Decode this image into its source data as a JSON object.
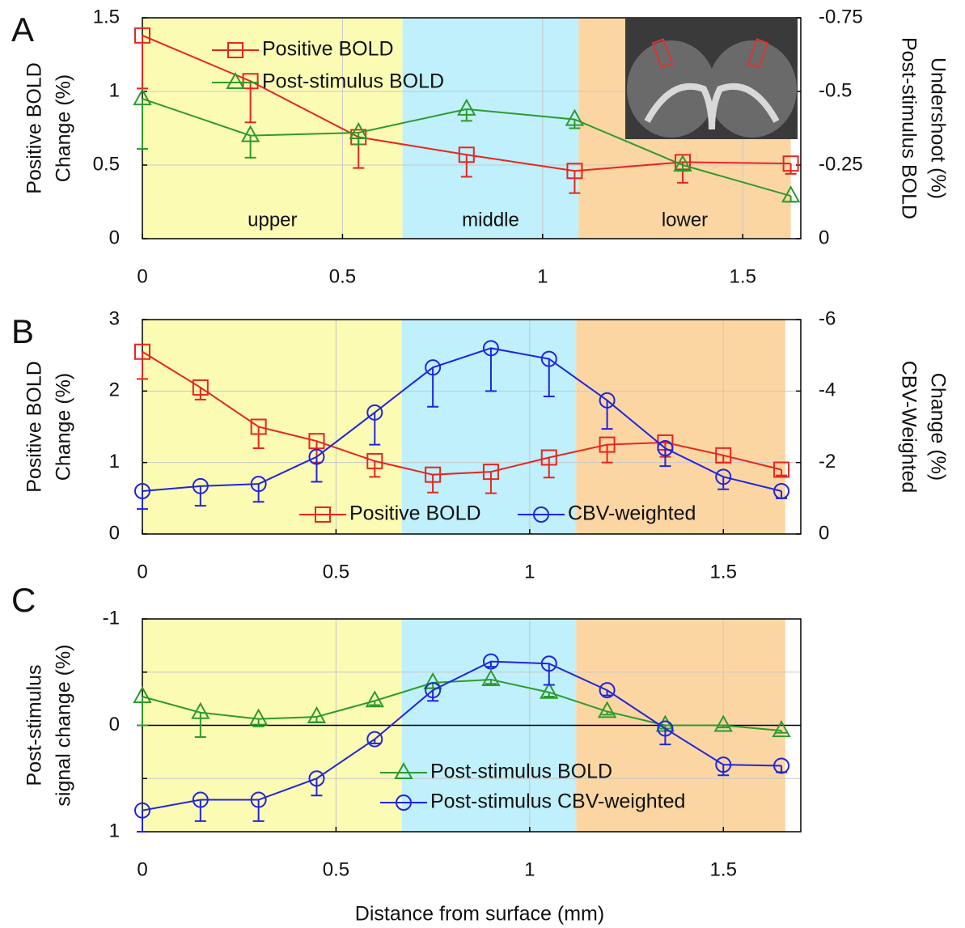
{
  "chart_data": [
    {
      "type": "line",
      "panel": "A",
      "ylabel": [
        "Positive BOLD",
        "Change (%)"
      ],
      "y2label": [
        "Post-stimulus BOLD",
        "Undershoot (%)"
      ],
      "xlim": [
        0,
        1.645
      ],
      "xticks": [
        0,
        0.5,
        1,
        1.5
      ],
      "ylim": [
        0,
        1.5
      ],
      "yticks": [
        0,
        0.5,
        1,
        1.5
      ],
      "y2lim": [
        0,
        -0.75
      ],
      "y2ticks": [
        0,
        -0.25,
        -0.5,
        -0.75
      ],
      "grid": true,
      "legend": "upper left",
      "regions": [
        {
          "label": "upper",
          "range": [
            0,
            0.65
          ],
          "color": "#fcfbb4"
        },
        {
          "label": "middle",
          "range": [
            0.65,
            1.09
          ],
          "color": "#bff0fb"
        },
        {
          "label": "lower",
          "range": [
            1.09,
            1.62
          ],
          "color": "#fcd6a2"
        }
      ],
      "x": [
        0,
        0.27,
        0.54,
        0.81,
        1.08,
        1.35,
        1.62
      ],
      "series": [
        {
          "name": "Positive BOLD",
          "color": "#e8251f",
          "marker": "square",
          "values": [
            1.38,
            1.07,
            0.69,
            0.57,
            0.46,
            0.52,
            0.51
          ],
          "errors": [
            0.36,
            0.28,
            0.21,
            0.15,
            0.15,
            0.14,
            0.07
          ]
        },
        {
          "name": "Post-stimulus BOLD",
          "color": "#2e9a2e",
          "marker": "triangle",
          "axis": "y2",
          "values": [
            -0.475,
            -0.35,
            -0.36,
            -0.44,
            -0.405,
            -0.25,
            -0.145
          ],
          "errors": [
            0.17,
            0.075,
            0.04,
            0.04,
            0.03,
            0.02,
            0.02
          ]
        }
      ]
    },
    {
      "type": "line",
      "panel": "B",
      "ylabel": [
        "Positive  BOLD",
        "Change (%)"
      ],
      "y2label": [
        "CBV-Weighted",
        "Change  (%)"
      ],
      "xlim": [
        0,
        1.7
      ],
      "xticks": [
        0,
        0.5,
        1,
        1.5
      ],
      "ylim": [
        0,
        3
      ],
      "yticks": [
        0,
        1,
        2,
        3
      ],
      "y2lim": [
        0,
        -6
      ],
      "y2ticks": [
        0,
        -2,
        -4,
        -6
      ],
      "grid": true,
      "legend": "lower center",
      "regions": [
        {
          "range": [
            0,
            0.67
          ],
          "color": "#fcfbb4"
        },
        {
          "range": [
            0.67,
            1.12
          ],
          "color": "#bff0fb"
        },
        {
          "range": [
            1.12,
            1.66
          ],
          "color": "#fcd6a2"
        }
      ],
      "x": [
        0,
        0.15,
        0.3,
        0.45,
        0.6,
        0.75,
        0.9,
        1.05,
        1.2,
        1.35,
        1.5,
        1.65
      ],
      "series": [
        {
          "name": "Positive BOLD",
          "color": "#e8251f",
          "marker": "square",
          "values": [
            2.55,
            2.05,
            1.5,
            1.3,
            1.02,
            0.83,
            0.87,
            1.07,
            1.25,
            1.28,
            1.1,
            0.9
          ],
          "errors": [
            0.38,
            0.17,
            0.3,
            0.3,
            0.22,
            0.25,
            0.3,
            0.28,
            0.25,
            0.2,
            0.1,
            0.08
          ]
        },
        {
          "name": "CBV-weighted",
          "color": "#1f25e0",
          "marker": "circle",
          "axis": "y2",
          "values": [
            -1.2,
            -1.34,
            -1.4,
            -2.16,
            -3.4,
            -4.66,
            -5.2,
            -4.9,
            -3.74,
            -2.4,
            -1.6,
            -1.2
          ],
          "errors": [
            0.5,
            0.55,
            0.5,
            0.7,
            0.9,
            1.1,
            1.2,
            1.05,
            0.8,
            0.5,
            0.35,
            0.2
          ]
        }
      ]
    },
    {
      "type": "line",
      "panel": "C",
      "ylabel": [
        "Post-stimulus",
        "signal change (%)"
      ],
      "xlabel": "Distance from surface (mm)",
      "xlim": [
        0,
        1.7
      ],
      "xticks": [
        0,
        0.5,
        1,
        1.5
      ],
      "ylim": [
        1,
        -1
      ],
      "yticks": [
        -1,
        0,
        1
      ],
      "yminor": [
        -0.5,
        0.5
      ],
      "grid": true,
      "zero_line": true,
      "legend": "lower right",
      "regions": [
        {
          "range": [
            0,
            0.67
          ],
          "color": "#fcfbb4"
        },
        {
          "range": [
            0.67,
            1.12
          ],
          "color": "#bff0fb"
        },
        {
          "range": [
            1.12,
            1.66
          ],
          "color": "#fcd6a2"
        }
      ],
      "x": [
        0,
        0.15,
        0.3,
        0.45,
        0.6,
        0.75,
        0.9,
        1.05,
        1.2,
        1.35,
        1.5,
        1.65
      ],
      "series": [
        {
          "name": "Post-stimulus BOLD",
          "color": "#2e9a2e",
          "marker": "triangle",
          "values": [
            -0.27,
            -0.12,
            -0.06,
            -0.08,
            -0.23,
            -0.4,
            -0.43,
            -0.31,
            -0.13,
            0,
            0,
            0.05
          ],
          "errors": [
            0.27,
            0.23,
            0.07,
            0.05,
            0.04,
            0.05,
            0.04,
            0.04,
            0.03,
            0.03,
            0.02,
            0.02
          ]
        },
        {
          "name": "Post-stimulus CBV-weighted",
          "color": "#1f25e0",
          "marker": "circle",
          "values": [
            0.8,
            0.7,
            0.7,
            0.5,
            0.13,
            -0.33,
            -0.6,
            -0.58,
            -0.33,
            0.03,
            0.37,
            0.38
          ],
          "errors": [
            0.2,
            0.2,
            0.2,
            0.16,
            0.04,
            0.1,
            0.05,
            0.2,
            0.05,
            0.15,
            0.1,
            0.06
          ]
        }
      ]
    }
  ]
}
